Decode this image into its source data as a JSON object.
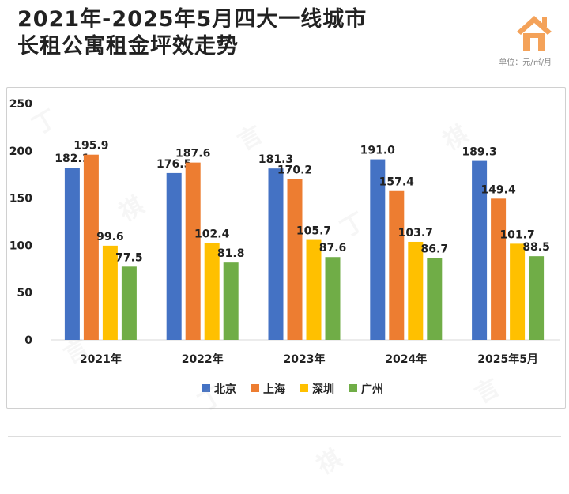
{
  "header": {
    "title_line1": "2021年-2025年5月四大一线城市",
    "title_line2": "长租公寓租金坪效走势",
    "unit": "单位：元/㎡/月"
  },
  "colors": {
    "北京": "#4472C4",
    "上海": "#ED7D31",
    "深圳": "#FFC000",
    "广州": "#70AD47",
    "house_icon": "#F4A259"
  },
  "chart_data": {
    "type": "bar",
    "categories": [
      "2021年",
      "2022年",
      "2023年",
      "2024年",
      "2025年5月"
    ],
    "series": [
      {
        "name": "北京",
        "values": [
          182.1,
          176.5,
          181.3,
          191.0,
          189.3
        ]
      },
      {
        "name": "上海",
        "values": [
          195.9,
          187.6,
          170.2,
          157.4,
          149.4
        ]
      },
      {
        "name": "深圳",
        "values": [
          99.6,
          102.4,
          105.7,
          103.7,
          101.7
        ]
      },
      {
        "name": "广州",
        "values": [
          77.5,
          81.8,
          87.6,
          86.7,
          88.5
        ]
      }
    ],
    "value_labels": [
      [
        "182.1",
        "176.5",
        "181.3",
        "191.0",
        "189.3"
      ],
      [
        "195.9",
        "187.6",
        "170.2",
        "157.4",
        "149.4"
      ],
      [
        "99.6",
        "102.4",
        "105.7",
        "103.7",
        "101.7"
      ],
      [
        "77.5",
        "81.8",
        "87.6",
        "86.7",
        "88.5"
      ]
    ],
    "yticks": [
      "0",
      "50",
      "100",
      "150",
      "200",
      "250"
    ],
    "ylim": [
      0,
      250
    ],
    "grid": false,
    "legend_position": "bottom"
  }
}
